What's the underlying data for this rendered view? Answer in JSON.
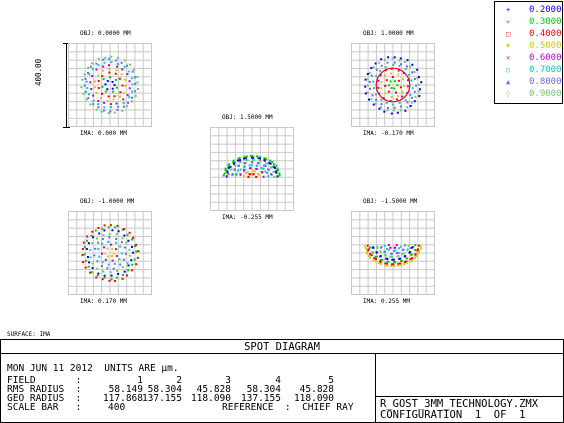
{
  "surface_label": "SURFACE: IMA",
  "title": "SPOT DIAGRAM",
  "scale_bar_side_label": "400.00",
  "legend": [
    {
      "symbol": "+",
      "value": "0.2000",
      "color": "#0000ff"
    },
    {
      "symbol": "×",
      "value": "0.3000",
      "color": "#00cc00"
    },
    {
      "symbol": "□",
      "value": "0.4000",
      "color": "#ff0000"
    },
    {
      "symbol": "♦",
      "value": "0.5000",
      "color": "#cccc00"
    },
    {
      "symbol": "×",
      "value": "0.6000",
      "color": "#cc00cc"
    },
    {
      "symbol": "○",
      "value": "0.7000",
      "color": "#00cccc"
    },
    {
      "symbol": "▲",
      "value": "0.8000",
      "color": "#6666ff"
    },
    {
      "symbol": "◊",
      "value": "0.9000",
      "color": "#66cc66"
    }
  ],
  "spots": [
    {
      "obj": "OBJ: 0.0000 MM",
      "ima": "IMA: 0.000 MM",
      "shape": "full"
    },
    {
      "obj": "OBJ: 1.0000 MM",
      "ima": "IMA: -0.170 MM",
      "shape": "full-ring"
    },
    {
      "obj": "OBJ: 1.5000 MM",
      "ima": "IMA: -0.255 MM",
      "shape": "top-half"
    },
    {
      "obj": "OBJ: -1.0000 MM",
      "ima": "IMA: 0.170 MM",
      "shape": "full"
    },
    {
      "obj": "OBJ: -1.5000 MM",
      "ima": "IMA: 0.255 MM",
      "shape": "bottom-half"
    }
  ],
  "info": {
    "date_line": "MON JUN 11 2012  UNITS ARE µm.",
    "field_label": "FIELD       :",
    "rms_label": "RMS RADIUS  :",
    "geo_label": "GEO RADIUS  :",
    "scale_label": "SCALE BAR   :",
    "field_values": [
      "1",
      "2",
      "3",
      "4",
      "5"
    ],
    "rms_values": [
      "58.149",
      "58.304",
      "45.828",
      "58.304",
      "45.828"
    ],
    "geo_values": [
      "117.868",
      "137.155",
      "118.090",
      "137.155",
      "118.090"
    ],
    "scale_value": "400",
    "reference": "REFERENCE  :  CHIEF RAY",
    "filename": "R_GOST_3MM_TECHNOLOGY.ZMX",
    "configuration": "CONFIGURATION  1  OF  1"
  }
}
